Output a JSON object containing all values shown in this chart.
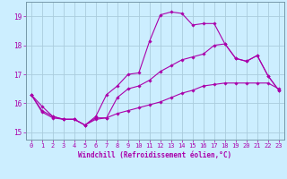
{
  "xlabel": "Windchill (Refroidissement éolien,°C)",
  "background_color": "#cceeff",
  "grid_color": "#aaccdd",
  "line_color": "#aa00aa",
  "xlim": [
    -0.5,
    23.5
  ],
  "ylim": [
    14.75,
    19.5
  ],
  "yticks": [
    15,
    16,
    17,
    18,
    19
  ],
  "xticks": [
    0,
    1,
    2,
    3,
    4,
    5,
    6,
    7,
    8,
    9,
    10,
    11,
    12,
    13,
    14,
    15,
    16,
    17,
    18,
    19,
    20,
    21,
    22,
    23
  ],
  "series1": [
    [
      0,
      16.3
    ],
    [
      1,
      15.9
    ],
    [
      2,
      15.55
    ],
    [
      3,
      15.45
    ],
    [
      4,
      15.45
    ],
    [
      5,
      15.25
    ],
    [
      6,
      15.55
    ],
    [
      7,
      16.3
    ],
    [
      8,
      16.6
    ],
    [
      9,
      17.0
    ],
    [
      10,
      17.05
    ],
    [
      11,
      18.15
    ],
    [
      12,
      19.05
    ],
    [
      13,
      19.15
    ],
    [
      14,
      19.1
    ],
    [
      15,
      18.7
    ],
    [
      16,
      18.75
    ],
    [
      17,
      18.75
    ],
    [
      18,
      18.05
    ],
    [
      19,
      17.55
    ],
    [
      20,
      17.45
    ],
    [
      21,
      17.65
    ],
    [
      22,
      16.95
    ],
    [
      23,
      16.45
    ]
  ],
  "series2": [
    [
      0,
      16.3
    ],
    [
      1,
      15.75
    ],
    [
      2,
      15.55
    ],
    [
      3,
      15.45
    ],
    [
      4,
      15.45
    ],
    [
      5,
      15.25
    ],
    [
      6,
      15.5
    ],
    [
      7,
      15.5
    ],
    [
      8,
      16.2
    ],
    [
      9,
      16.5
    ],
    [
      10,
      16.6
    ],
    [
      11,
      16.8
    ],
    [
      12,
      17.1
    ],
    [
      13,
      17.3
    ],
    [
      14,
      17.5
    ],
    [
      15,
      17.6
    ],
    [
      16,
      17.7
    ],
    [
      17,
      18.0
    ],
    [
      18,
      18.05
    ],
    [
      19,
      17.55
    ],
    [
      20,
      17.45
    ],
    [
      21,
      17.65
    ],
    [
      22,
      16.95
    ],
    [
      23,
      16.45
    ]
  ],
  "series3": [
    [
      0,
      16.3
    ],
    [
      1,
      15.7
    ],
    [
      2,
      15.5
    ],
    [
      3,
      15.45
    ],
    [
      4,
      15.45
    ],
    [
      5,
      15.25
    ],
    [
      6,
      15.45
    ],
    [
      7,
      15.5
    ],
    [
      8,
      15.65
    ],
    [
      9,
      15.75
    ],
    [
      10,
      15.85
    ],
    [
      11,
      15.95
    ],
    [
      12,
      16.05
    ],
    [
      13,
      16.2
    ],
    [
      14,
      16.35
    ],
    [
      15,
      16.45
    ],
    [
      16,
      16.6
    ],
    [
      17,
      16.65
    ],
    [
      18,
      16.7
    ],
    [
      19,
      16.7
    ],
    [
      20,
      16.7
    ],
    [
      21,
      16.7
    ],
    [
      22,
      16.7
    ],
    [
      23,
      16.5
    ]
  ]
}
